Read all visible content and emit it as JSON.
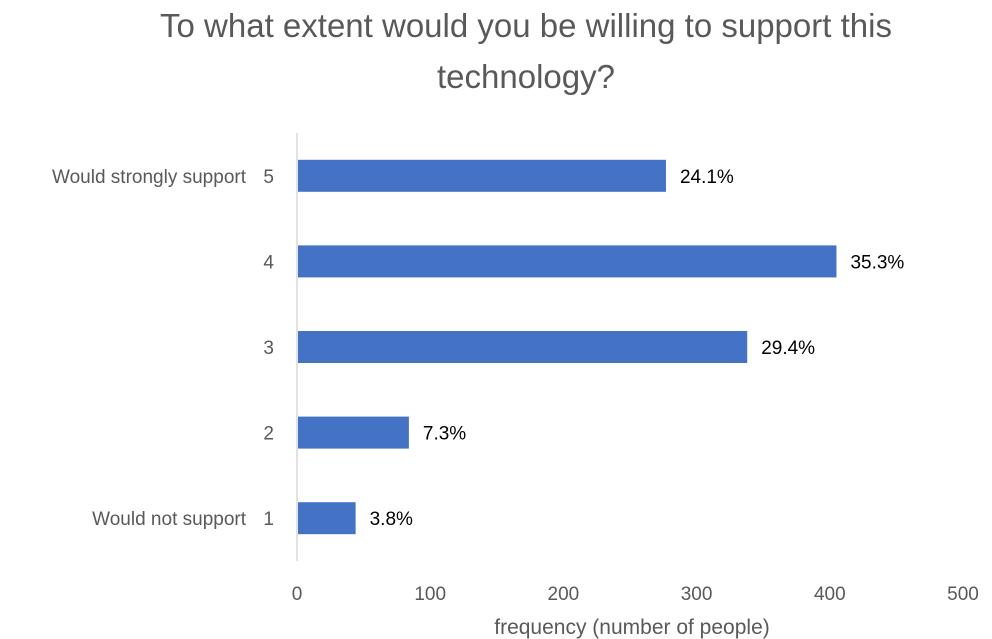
{
  "chart_data": {
    "type": "bar",
    "orientation": "horizontal",
    "title_lines": [
      "To what extent would you be willing to support this",
      "technology?"
    ],
    "categories": [
      "1",
      "2",
      "3",
      "4",
      "5"
    ],
    "category_descriptions": {
      "1": "Would not support",
      "5": "Would strongly support"
    },
    "values": [
      44,
      84,
      338,
      405,
      277
    ],
    "data_labels": [
      "3.8%",
      "7.3%",
      "29.4%",
      "35.3%",
      "24.1%"
    ],
    "xlabel": "frequency (number of people)",
    "xlim": [
      0,
      500
    ],
    "xticks": [
      0,
      100,
      200,
      300,
      400,
      500
    ],
    "grid": false,
    "legend": "none",
    "bar_color": "#4472C4"
  }
}
